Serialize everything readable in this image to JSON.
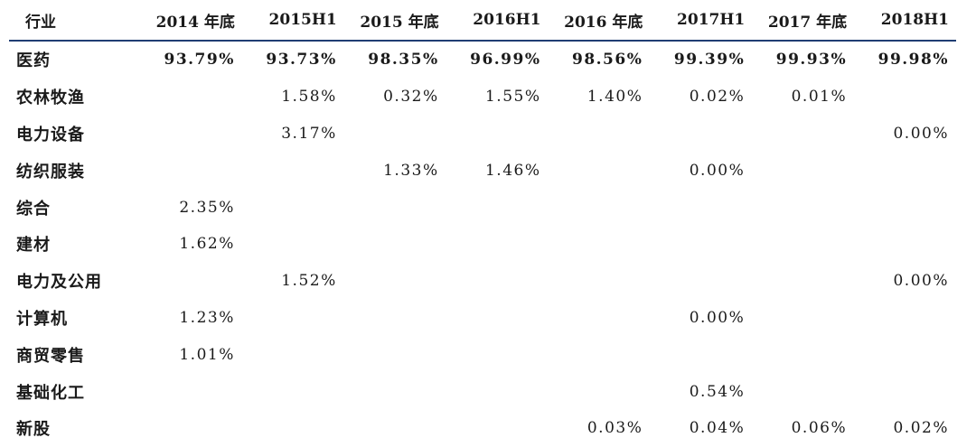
{
  "table": {
    "headers": [
      "行业",
      "2014 年底",
      "2015H1",
      "2015 年底",
      "2016H1",
      "2016 年底",
      "2017H1",
      "2017 年底",
      "2018H1"
    ],
    "rows": [
      {
        "industry": "医药",
        "values": [
          "93.79%",
          "93.73%",
          "98.35%",
          "96.99%",
          "98.56%",
          "99.39%",
          "99.93%",
          "99.98%"
        ],
        "bold": true
      },
      {
        "industry": "农林牧渔",
        "values": [
          "",
          "1.58%",
          "0.32%",
          "1.55%",
          "1.40%",
          "0.02%",
          "0.01%",
          ""
        ]
      },
      {
        "industry": "电力设备",
        "values": [
          "",
          "3.17%",
          "",
          "",
          "",
          "",
          "",
          "0.00%"
        ]
      },
      {
        "industry": "纺织服装",
        "values": [
          "",
          "",
          "1.33%",
          "1.46%",
          "",
          "0.00%",
          "",
          ""
        ]
      },
      {
        "industry": "综合",
        "values": [
          "2.35%",
          "",
          "",
          "",
          "",
          "",
          "",
          ""
        ]
      },
      {
        "industry": "建材",
        "values": [
          "1.62%",
          "",
          "",
          "",
          "",
          "",
          "",
          ""
        ]
      },
      {
        "industry": "电力及公用",
        "values": [
          "",
          "1.52%",
          "",
          "",
          "",
          "",
          "",
          "0.00%"
        ]
      },
      {
        "industry": "计算机",
        "values": [
          "1.23%",
          "",
          "",
          "",
          "",
          "0.00%",
          "",
          ""
        ]
      },
      {
        "industry": "商贸零售",
        "values": [
          "1.01%",
          "",
          "",
          "",
          "",
          "",
          "",
          ""
        ]
      },
      {
        "industry": "基础化工",
        "values": [
          "",
          "",
          "",
          "",
          "",
          "0.54%",
          "",
          ""
        ]
      },
      {
        "industry": "新股",
        "values": [
          "",
          "",
          "",
          "",
          "0.03%",
          "0.04%",
          "0.06%",
          "0.02%"
        ]
      }
    ]
  }
}
